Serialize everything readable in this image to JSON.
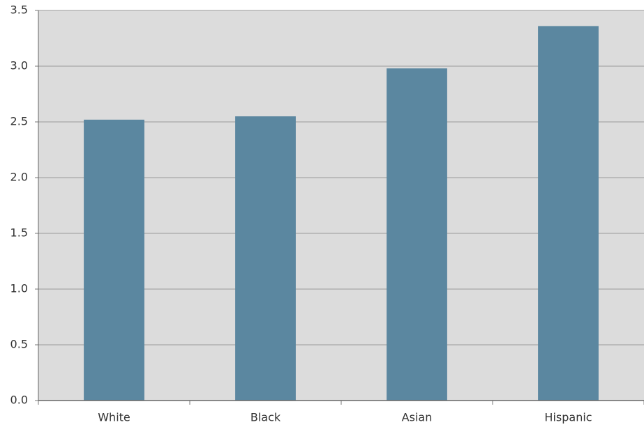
{
  "chart_data": {
    "type": "bar",
    "categories": [
      "White",
      "Black",
      "Asian",
      "Hispanic"
    ],
    "values": [
      2.52,
      2.55,
      2.98,
      3.36
    ],
    "color": "#5b87a0",
    "ylim": [
      0,
      3.5
    ],
    "yticks": [
      {
        "value": 0,
        "label": "0.0"
      },
      0.5,
      {
        "value": 1,
        "label": "1.0"
      },
      1.5,
      {
        "value": 2,
        "label": "2.0"
      },
      2.5,
      {
        "value": 3,
        "label": "3.0"
      },
      3.5
    ],
    "grid": true
  }
}
